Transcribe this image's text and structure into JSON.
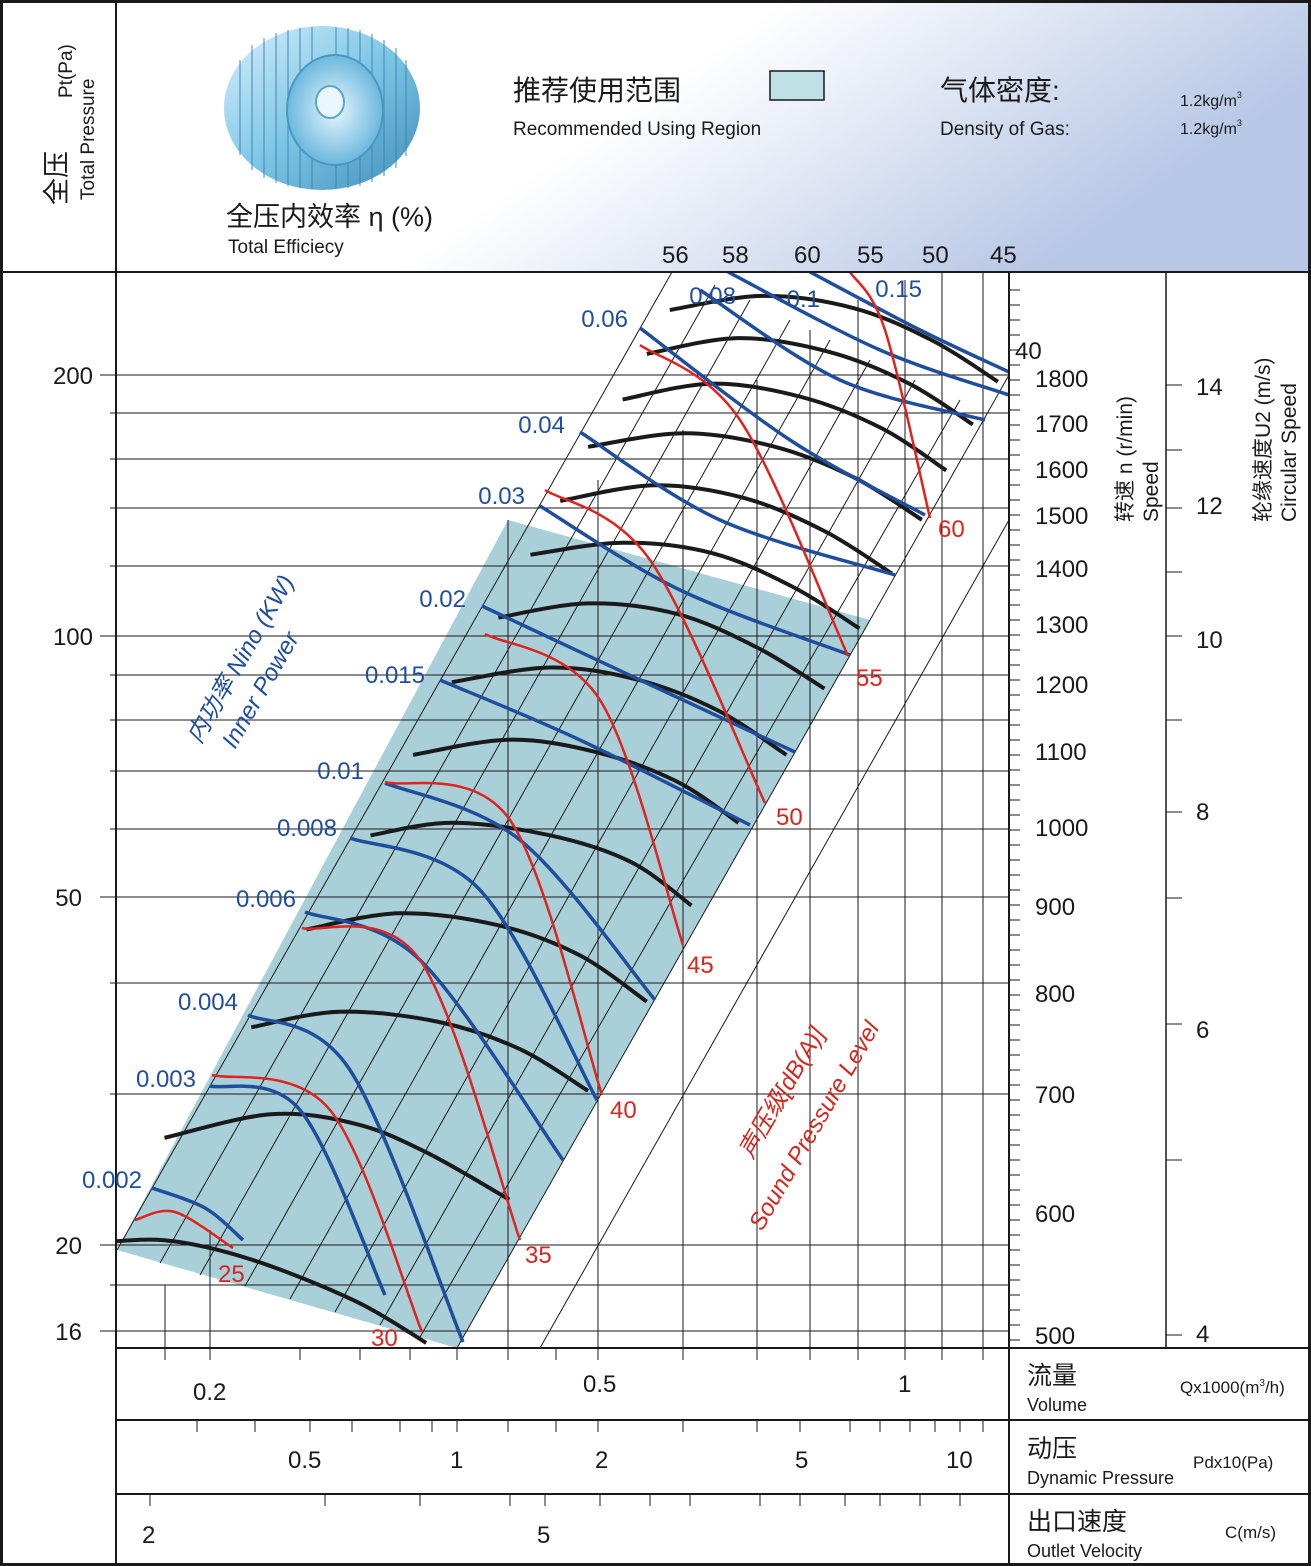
{
  "header": {
    "pressure_cn": "全压",
    "pressure_unit": "Pt(Pa)",
    "pressure_en": "Total Pressure",
    "efficiency_cn": "全压内效率 η (%)",
    "efficiency_en": "Total Efficiecy",
    "recommended_cn": "推荐使用范围",
    "recommended_en": "Recommended Using Region",
    "density_cn": "气体密度:",
    "density_en": "Density of Gas:",
    "density_value_1": "1.2kg/m",
    "density_value_2": "1.2kg/m",
    "density_sup": "3"
  },
  "axes": {
    "speed_cn": "转速 n (r/min)",
    "speed_en": "Speed",
    "circular_cn": "轮缘速度U2 (m/s)",
    "circular_en": "Circular Speed",
    "power_cn": "内功率 Nino (KW)",
    "power_en": "Inner Power",
    "sound_cn": "声压级[dB(A)]",
    "sound_en": "Sound Pressure Level",
    "volume_cn": "流量",
    "volume_en": "Volume",
    "volume_unit": "Qx1000(m",
    "volume_unit_sup": "3",
    "volume_unit_end": "/h)",
    "dyn_cn": "动压",
    "dyn_en": "Dynamic Pressure",
    "dyn_unit": "Pdx10(Pa)",
    "vel_cn": "出口速度",
    "vel_en": "Outlet Velocity",
    "vel_unit": "C(m/s)"
  },
  "colors": {
    "region": "#a9cfd9",
    "power_curve": "#1f4e9c",
    "sound_curve": "#e0231c",
    "speed_curve": "#1a1a1a",
    "power_label": "#1f4e9c",
    "sound_label": "#d8261e"
  },
  "chart_data": {
    "type": "line",
    "x_scale": "log",
    "y_scale": "log",
    "ylim": [
      16,
      240
    ],
    "xlim": [
      0.15,
      1.3
    ],
    "y_ticks": [
      "16",
      "20",
      "50",
      "100",
      "200"
    ],
    "volume_ticks": [
      "0.2",
      "0.5",
      "1"
    ],
    "dynamic_pressure_ticks": [
      "0.5",
      "1",
      "2",
      "5",
      "10"
    ],
    "outlet_velocity_ticks": [
      "2",
      "5"
    ],
    "speed_ticks": [
      "500",
      "600",
      "700",
      "800",
      "900",
      "1000",
      "1100",
      "1200",
      "1300",
      "1400",
      "1500",
      "1600",
      "1700",
      "1800"
    ],
    "circular_speed_ticks": [
      "4",
      "6",
      "8",
      "10",
      "12",
      "14"
    ],
    "efficiency_labels": [
      "56",
      "58",
      "60",
      "55",
      "50",
      "45",
      "40"
    ],
    "power_labels": [
      "0.002",
      "0.003",
      "0.004",
      "0.006",
      "0.008",
      "0.01",
      "0.015",
      "0.02",
      "0.03",
      "0.04",
      "0.06",
      "0.08",
      "0.1",
      "0.15"
    ],
    "sound_labels": [
      "25",
      "30",
      "35",
      "40",
      "45",
      "50",
      "55",
      "60"
    ],
    "series": [
      {
        "name": "500",
        "x": [
          0.15,
          0.18,
          0.22,
          0.28,
          0.33
        ],
        "y": [
          20,
          20.2,
          19.2,
          17.2,
          15.4
        ]
      },
      {
        "name": "600",
        "x": [
          0.18,
          0.23,
          0.28,
          0.33,
          0.4
        ],
        "y": [
          26.5,
          28.2,
          27.5,
          25.5,
          22.5
        ]
      },
      {
        "name": "700",
        "x": [
          0.22,
          0.27,
          0.34,
          0.41,
          0.48
        ],
        "y": [
          35.5,
          37,
          36,
          33.5,
          30
        ]
      },
      {
        "name": "800",
        "x": [
          0.25,
          0.31,
          0.39,
          0.47,
          0.55
        ],
        "y": [
          46,
          48,
          46.5,
          43,
          38
        ]
      },
      {
        "name": "900",
        "x": [
          0.29,
          0.35,
          0.44,
          0.53,
          0.61
        ],
        "y": [
          59,
          61,
          59,
          55,
          49
        ]
      },
      {
        "name": "1000",
        "x": [
          0.32,
          0.4,
          0.49,
          0.59,
          0.68
        ],
        "y": [
          73,
          76,
          73.5,
          68,
          61
        ]
      },
      {
        "name": "1100",
        "x": [
          0.35,
          0.44,
          0.54,
          0.65,
          0.76
        ],
        "y": [
          88.5,
          92,
          89,
          82,
          73
        ]
      },
      {
        "name": "1200",
        "x": [
          0.39,
          0.48,
          0.59,
          0.71,
          0.83
        ],
        "y": [
          105,
          109,
          106,
          97,
          87
        ]
      },
      {
        "name": "1300",
        "x": [
          0.42,
          0.52,
          0.64,
          0.77,
          0.9
        ],
        "y": [
          124,
          128,
          124.5,
          114,
          102
        ]
      },
      {
        "name": "1400",
        "x": [
          0.45,
          0.56,
          0.69,
          0.83,
          0.97
        ],
        "y": [
          143,
          149,
          144,
          132,
          118
        ]
      },
      {
        "name": "1500",
        "x": [
          0.48,
          0.6,
          0.74,
          0.89,
          1.04
        ],
        "y": [
          165,
          171,
          165,
          152,
          136
        ]
      },
      {
        "name": "1600",
        "x": [
          0.52,
          0.64,
          0.79,
          0.95,
          1.1
        ],
        "y": [
          187,
          195,
          188,
          173,
          155
        ]
      },
      {
        "name": "1700",
        "x": [
          0.55,
          0.68,
          0.84,
          1.01,
          1.17
        ],
        "y": [
          211,
          220,
          212,
          195,
          175
        ]
      },
      {
        "name": "1800",
        "x": [
          0.58,
          0.72,
          0.89,
          1.07,
          1.24
        ],
        "y": [
          237,
          246,
          238,
          218,
          196
        ]
      }
    ]
  }
}
